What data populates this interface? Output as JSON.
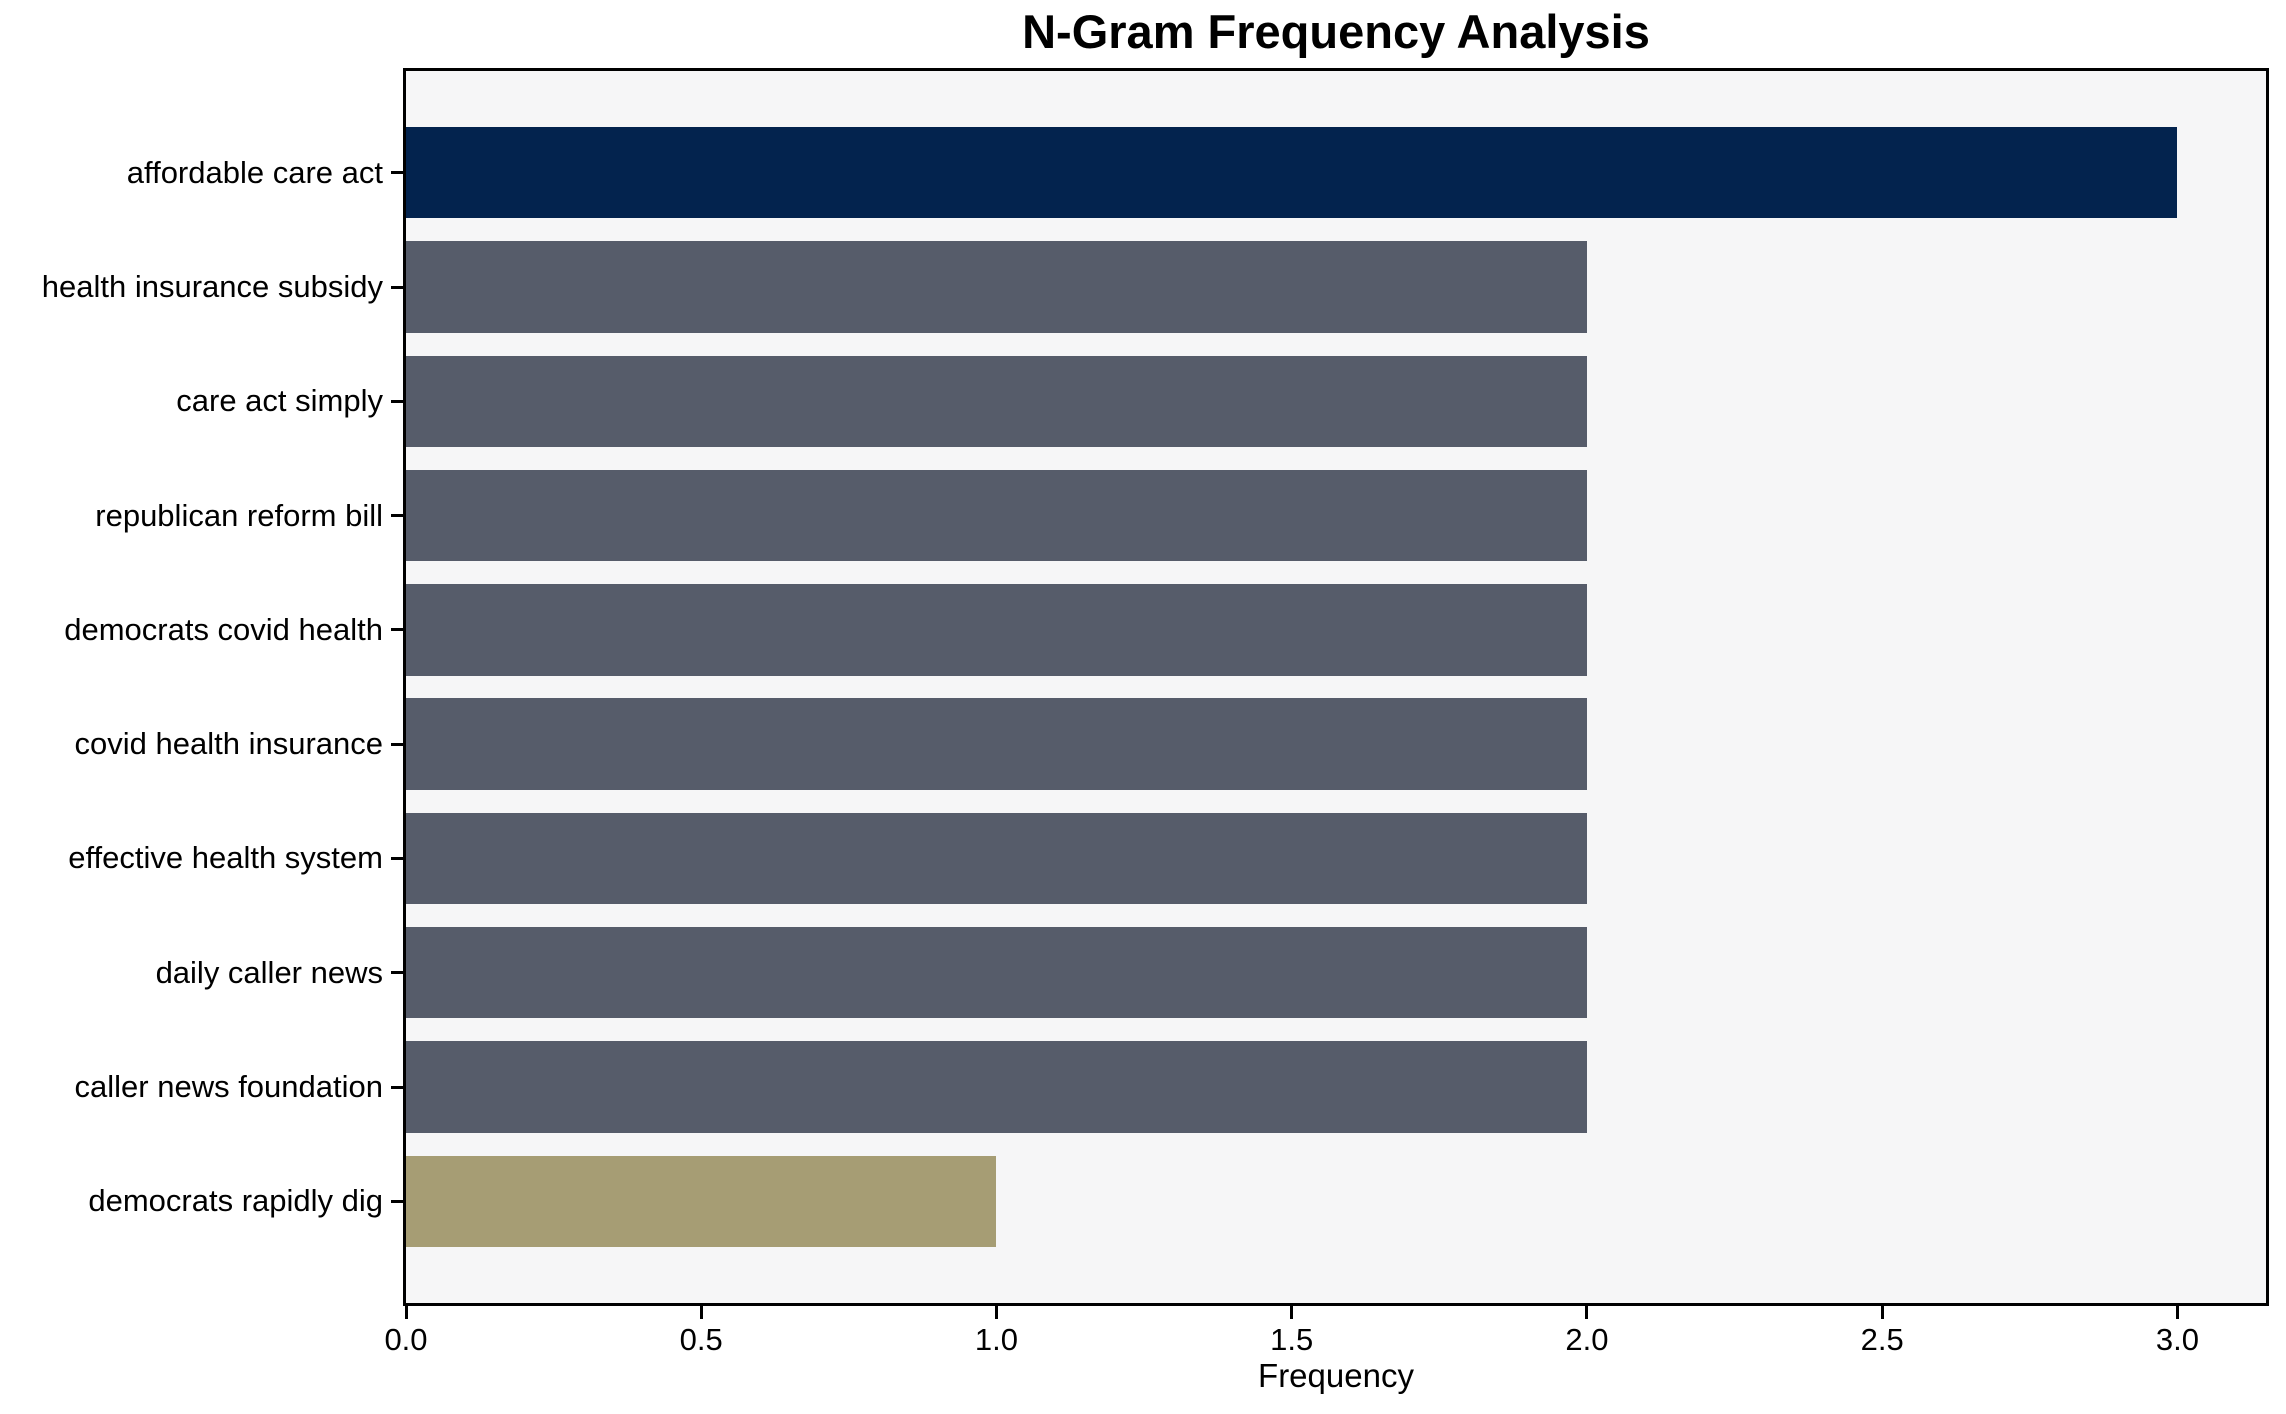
{
  "figure": {
    "background": "#ffffff",
    "plot_background": "#f6f6f7",
    "spine_color": "#000000",
    "text_color": "#000000"
  },
  "chart_data": {
    "type": "bar",
    "orientation": "horizontal",
    "title": "N-Gram Frequency Analysis",
    "xlabel": "Frequency",
    "ylabel": "",
    "grid": false,
    "legend": null,
    "categories": [
      "affordable care act",
      "health insurance subsidy",
      "care act simply",
      "republican reform bill",
      "democrats covid health",
      "covid health insurance",
      "effective health system",
      "daily caller news",
      "caller news foundation",
      "democrats rapidly dig"
    ],
    "values": [
      3,
      2,
      2,
      2,
      2,
      2,
      2,
      2,
      2,
      1
    ],
    "bar_colors": [
      "#03234e",
      "#565c6a",
      "#565c6a",
      "#565c6a",
      "#565c6a",
      "#565c6a",
      "#565c6a",
      "#565c6a",
      "#565c6a",
      "#a69d74"
    ],
    "xlim": [
      0,
      3.15
    ],
    "xticks": [
      0.0,
      0.5,
      1.0,
      1.5,
      2.0,
      2.5,
      3.0
    ],
    "xtick_labels": [
      "0.0",
      "0.5",
      "1.0",
      "1.5",
      "2.0",
      "2.5",
      "3.0"
    ]
  }
}
